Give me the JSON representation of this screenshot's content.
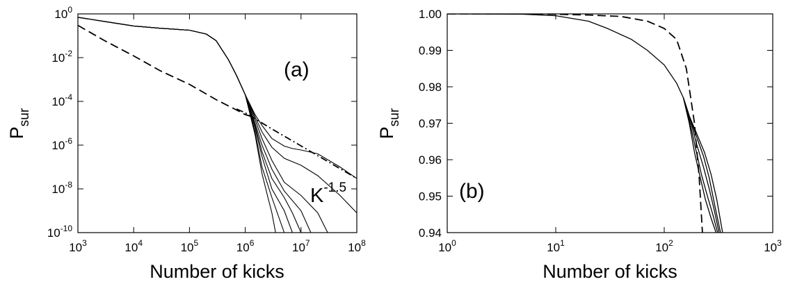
{
  "chart_data": [
    {
      "panel": "(a)",
      "type": "line",
      "xlabel": "Number of kicks",
      "ylabel_main": "P",
      "ylabel_sub": "sur",
      "xscale": "log",
      "yscale": "log",
      "xlim": [
        1000,
        100000000
      ],
      "ylim": [
        1e-10,
        1
      ],
      "x_ticks": [
        {
          "base": "10",
          "exp": "3"
        },
        {
          "base": "10",
          "exp": "4"
        },
        {
          "base": "10",
          "exp": "5"
        },
        {
          "base": "10",
          "exp": "6"
        },
        {
          "base": "10",
          "exp": "7"
        },
        {
          "base": "10",
          "exp": "8"
        }
      ],
      "y_ticks": [
        {
          "base": "10",
          "exp": "0"
        },
        {
          "base": "10",
          "exp": "-2"
        },
        {
          "base": "10",
          "exp": "-4"
        },
        {
          "base": "10",
          "exp": "-6"
        },
        {
          "base": "10",
          "exp": "-8"
        },
        {
          "base": "10",
          "exp": "-10"
        }
      ],
      "annotation": {
        "base": "K",
        "exp": "-1.5"
      },
      "series": [
        {
          "style": "dashed",
          "x": [
            1000,
            3000,
            10000,
            30000,
            100000,
            300000,
            700000,
            1000000,
            1500000
          ],
          "y": [
            0.3,
            0.06,
            0.012,
            0.0025,
            0.0006,
            0.00012,
            4e-05,
            2.5e-05,
            1.8e-05
          ]
        },
        {
          "style": "dashdot",
          "x": [
            700000,
            1000000,
            3000000,
            10000000,
            30000000,
            100000000
          ],
          "y": [
            4.5e-05,
            3e-05,
            5.5e-06,
            9.2e-07,
            1.8e-07,
            3e-08
          ]
        },
        {
          "style": "solid",
          "x": [
            1000,
            3000,
            10000,
            30000,
            100000,
            200000,
            300000,
            500000,
            700000,
            1000000,
            1500000,
            2000000,
            3000000,
            5000000,
            7000000,
            10000000,
            20000000,
            50000000,
            100000000
          ],
          "y": [
            0.7,
            0.45,
            0.28,
            0.22,
            0.18,
            0.12,
            0.06,
            0.008,
            0.0015,
            0.0002,
            2.5e-05,
            8e-06,
            2e-06,
            9e-07,
            7e-07,
            6e-07,
            4e-07,
            1e-07,
            3e-08
          ]
        },
        {
          "style": "solid",
          "x": [
            1000,
            3000,
            10000,
            30000,
            100000,
            200000,
            300000,
            500000,
            700000,
            1000000,
            1500000,
            2000000,
            3000000,
            5000000,
            10000000,
            20000000,
            50000000,
            100000000
          ],
          "y": [
            0.7,
            0.45,
            0.28,
            0.22,
            0.18,
            0.12,
            0.06,
            0.008,
            0.0015,
            0.0002,
            2e-05,
            4e-06,
            8e-07,
            2.5e-07,
            1.2e-07,
            4e-08,
            5e-09,
            8e-10
          ]
        },
        {
          "style": "solid",
          "x": [
            1000,
            3000,
            10000,
            30000,
            100000,
            200000,
            300000,
            500000,
            700000,
            1000000,
            1500000,
            2000000,
            3000000,
            5000000,
            10000000,
            20000000,
            30000000
          ],
          "y": [
            0.7,
            0.45,
            0.28,
            0.22,
            0.18,
            0.12,
            0.06,
            0.008,
            0.0015,
            0.0002,
            1.5e-05,
            2e-06,
            2e-07,
            2e-08,
            5e-09,
            8e-10,
            1e-10
          ]
        },
        {
          "style": "solid",
          "x": [
            1000,
            3000,
            10000,
            30000,
            100000,
            200000,
            300000,
            500000,
            700000,
            1000000,
            1500000,
            2000000,
            3000000,
            5000000,
            10000000,
            15000000
          ],
          "y": [
            0.7,
            0.45,
            0.28,
            0.22,
            0.18,
            0.12,
            0.06,
            0.008,
            0.0015,
            0.0002,
            1e-05,
            1e-06,
            8e-08,
            8e-09,
            1e-09,
            1e-10
          ]
        },
        {
          "style": "solid",
          "x": [
            1000,
            3000,
            10000,
            30000,
            100000,
            200000,
            300000,
            500000,
            700000,
            1000000,
            1500000,
            2000000,
            3000000,
            5000000,
            7000000,
            10000000
          ],
          "y": [
            0.7,
            0.45,
            0.28,
            0.22,
            0.18,
            0.12,
            0.06,
            0.008,
            0.0015,
            0.0002,
            8e-06,
            5e-07,
            3e-08,
            4e-09,
            8e-10,
            1e-10
          ]
        },
        {
          "style": "solid",
          "x": [
            1000,
            3000,
            10000,
            30000,
            100000,
            200000,
            300000,
            500000,
            700000,
            1000000,
            1500000,
            2000000,
            3000000,
            5000000,
            7000000
          ],
          "y": [
            0.7,
            0.45,
            0.28,
            0.22,
            0.18,
            0.12,
            0.06,
            0.008,
            0.0015,
            0.0002,
            6e-06,
            3e-07,
            1e-08,
            1e-09,
            1e-10
          ]
        },
        {
          "style": "solid",
          "x": [
            1000,
            3000,
            10000,
            30000,
            100000,
            200000,
            300000,
            500000,
            700000,
            1000000,
            1500000,
            2000000,
            3000000,
            4000000,
            5000000
          ],
          "y": [
            0.7,
            0.45,
            0.28,
            0.22,
            0.18,
            0.12,
            0.06,
            0.008,
            0.0015,
            0.0002,
            4e-06,
            1e-07,
            4e-09,
            5e-10,
            1e-10
          ]
        },
        {
          "style": "solid",
          "x": [
            1000,
            3000,
            10000,
            30000,
            100000,
            200000,
            300000,
            500000,
            700000,
            1000000,
            1500000,
            2000000,
            2500000,
            3000000,
            3500000
          ],
          "y": [
            0.7,
            0.45,
            0.28,
            0.22,
            0.18,
            0.12,
            0.06,
            0.008,
            0.0015,
            0.0002,
            3e-06,
            5e-08,
            5e-09,
            8e-10,
            1e-10
          ]
        }
      ]
    },
    {
      "panel": "(b)",
      "type": "line",
      "xlabel": "Number of kicks",
      "ylabel_main": "P",
      "ylabel_sub": "sur",
      "xscale": "log",
      "yscale": "linear",
      "xlim": [
        1,
        1000
      ],
      "ylim": [
        0.94,
        1.0
      ],
      "x_ticks": [
        {
          "base": "10",
          "exp": "0"
        },
        {
          "base": "10",
          "exp": "1"
        },
        {
          "base": "10",
          "exp": "2"
        },
        {
          "base": "10",
          "exp": "3"
        }
      ],
      "y_ticks": [
        "1.00",
        "0.99",
        "0.98",
        "0.97",
        "0.96",
        "0.95",
        "0.94"
      ],
      "series": [
        {
          "style": "dashed",
          "x": [
            1,
            5,
            10,
            20,
            40,
            70,
            100,
            130,
            160,
            190,
            210,
            225
          ],
          "y": [
            1.0,
            1.0,
            0.9999,
            0.9997,
            0.9993,
            0.998,
            0.996,
            0.993,
            0.985,
            0.97,
            0.955,
            0.94
          ]
        },
        {
          "style": "solid",
          "x": [
            1,
            5,
            10,
            20,
            30,
            50,
            70,
            100,
            130,
            150,
            170,
            200,
            230,
            260,
            290,
            320
          ],
          "y": [
            1.0,
            0.9999,
            0.9995,
            0.998,
            0.996,
            0.993,
            0.99,
            0.986,
            0.981,
            0.977,
            0.972,
            0.964,
            0.958,
            0.952,
            0.946,
            0.94
          ]
        },
        {
          "style": "solid",
          "x": [
            150,
            170,
            200,
            230,
            260,
            290,
            330
          ],
          "y": [
            0.977,
            0.972,
            0.966,
            0.961,
            0.955,
            0.948,
            0.94
          ]
        },
        {
          "style": "solid",
          "x": [
            150,
            170,
            195,
            220,
            250,
            280,
            310
          ],
          "y": [
            0.977,
            0.971,
            0.963,
            0.956,
            0.95,
            0.945,
            0.94
          ]
        },
        {
          "style": "solid",
          "x": [
            150,
            170,
            200,
            235,
            270,
            305,
            345
          ],
          "y": [
            0.977,
            0.972,
            0.967,
            0.962,
            0.956,
            0.949,
            0.94
          ]
        },
        {
          "style": "solid",
          "x": [
            150,
            170,
            190,
            215,
            240,
            270,
            300
          ],
          "y": [
            0.977,
            0.97,
            0.962,
            0.955,
            0.949,
            0.944,
            0.94
          ]
        }
      ]
    }
  ]
}
